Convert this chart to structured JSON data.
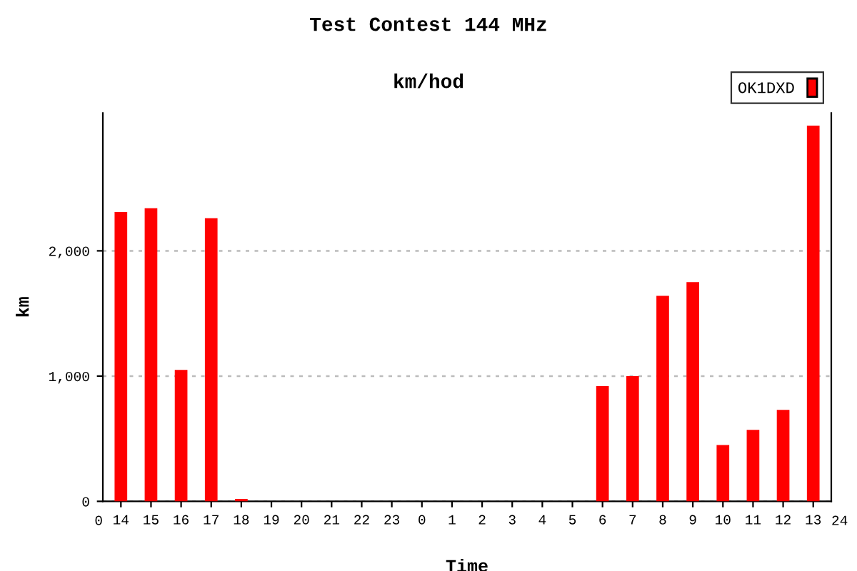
{
  "chart_data": {
    "type": "bar",
    "title": "Test Contest 144 MHz",
    "subtitle": "km/hod",
    "xlabel": "Time",
    "ylabel": "km",
    "categories": [
      "14",
      "15",
      "16",
      "17",
      "18",
      "19",
      "20",
      "21",
      "22",
      "23",
      "0",
      "1",
      "2",
      "3",
      "4",
      "5",
      "6",
      "7",
      "8",
      "9",
      "10",
      "11",
      "12",
      "13"
    ],
    "series": [
      {
        "name": "OK1DXD",
        "color": "#ff0000",
        "values": [
          2310,
          2340,
          1050,
          2260,
          20,
          0,
          0,
          0,
          0,
          0,
          0,
          0,
          0,
          0,
          0,
          0,
          920,
          1000,
          1640,
          1750,
          450,
          570,
          730,
          3000
        ]
      }
    ],
    "annotations": [
      "0",
      "24"
    ],
    "ylim": [
      0,
      3100
    ],
    "yticks": [
      0,
      {
        "value": 1000,
        "label": "1,000"
      },
      {
        "value": 2000,
        "label": "2,000"
      }
    ],
    "grid": "y",
    "legend": "top right"
  }
}
